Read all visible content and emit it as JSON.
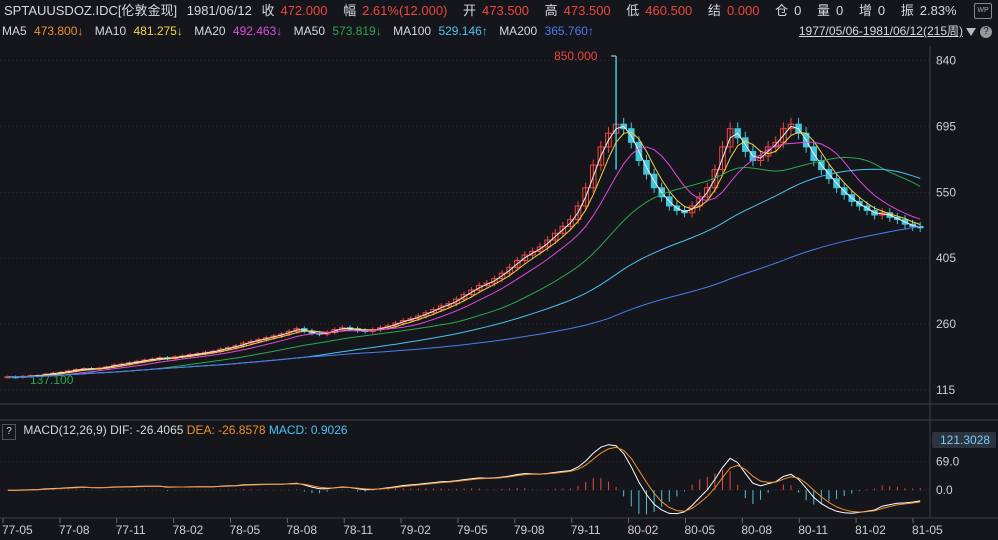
{
  "header": {
    "symbol": "SPTAUUSDOZ.IDC[伦敦金现]",
    "date": "1981/06/12",
    "close_label": "收",
    "close_value": "472.000",
    "change_label": "幅",
    "change_value": "2.61%(12.000)",
    "open_label": "开",
    "open_value": "473.500",
    "high_label": "高",
    "high_value": "473.500",
    "low_label": "低",
    "low_value": "460.500",
    "settle_label": "结",
    "settle_value": "0.000",
    "position_label": "仓",
    "position_value": "0",
    "volume_label": "量",
    "volume_value": "0",
    "increase_label": "增",
    "increase_value": "0",
    "amplitude_label": "振",
    "amplitude_value": "2.83%"
  },
  "ma_bar": {
    "ma5": "MA5",
    "ma5_value": "473.800↓",
    "ma10": "MA10",
    "ma10_value": "481.275↓",
    "ma20": "MA20",
    "ma20_value": "492.463↓",
    "ma50": "MA50",
    "ma50_value": "573.819↓",
    "ma100": "MA100",
    "ma100_value": "529.146↑",
    "ma200": "MA200",
    "ma200_value": "365.760↑"
  },
  "range": {
    "text": "1977/05/06-1981/06/12(215周)",
    "help": "?"
  },
  "wp_label": "WP",
  "price_chart": {
    "y_ticks": [
      "840",
      "695",
      "550",
      "405",
      "260",
      "115"
    ],
    "max_label": "850.000",
    "min_label": "137.100"
  },
  "macd_bar": {
    "help": "?",
    "title": "MACD(12,26,9)",
    "dif": "DIF: -26.4065",
    "dea": "DEA: -26.8578",
    "macd": "MACD: 0.9026",
    "badge": "121.3028",
    "y_ticks": [
      "69.0",
      "0.0"
    ]
  },
  "x_ticks": [
    "77-05",
    "77-08",
    "77-11",
    "78-02",
    "78-05",
    "78-08",
    "78-11",
    "79-02",
    "79-05",
    "79-08",
    "79-11",
    "80-02",
    "80-05",
    "80-08",
    "80-11",
    "81-02",
    "81-05"
  ],
  "colors": {
    "bg": "#14161c",
    "up": "#f0453c",
    "down": "#41c6dc",
    "grid": "#2a2d36",
    "ma5": "#f0f0f0",
    "ma10": "#f4d442",
    "ma20": "#e048e0",
    "ma50": "#2aa84a",
    "ma100": "#4cc3f0",
    "ma200": "#4a7cf0",
    "dif": "#ffffff",
    "dea": "#f0902a"
  },
  "chart_data": {
    "type": "candlestick",
    "price_range": [
      115,
      850
    ],
    "x_start": "1977-05",
    "x_end": "1981-06",
    "close_series": [
      144,
      143,
      145,
      146,
      147,
      150,
      152,
      154,
      157,
      160,
      162,
      161,
      163,
      166,
      170,
      172,
      175,
      178,
      181,
      183,
      186,
      184,
      188,
      190,
      193,
      195,
      198,
      200,
      205,
      208,
      212,
      218,
      222,
      226,
      230,
      234,
      238,
      244,
      250,
      245,
      240,
      238,
      242,
      248,
      252,
      250,
      246,
      244,
      248,
      252,
      256,
      262,
      268,
      272,
      278,
      285,
      292,
      300,
      305,
      315,
      325,
      335,
      345,
      350,
      360,
      372,
      385,
      400,
      412,
      420,
      430,
      445,
      460,
      475,
      490,
      520,
      560,
      610,
      650,
      680,
      700,
      690,
      660,
      620,
      590,
      560,
      540,
      520,
      510,
      505,
      520,
      540,
      560,
      600,
      650,
      690,
      670,
      640,
      620,
      630,
      650,
      660,
      690,
      700,
      680,
      650,
      620,
      600,
      580,
      560,
      545,
      530,
      520,
      510,
      500,
      505,
      495,
      490,
      480,
      475,
      472
    ],
    "macd": {
      "y_range": [
        -60,
        121.3028
      ],
      "dif_last": -26.4065,
      "dea_last": -26.8578,
      "hist_last": 0.9026
    }
  }
}
